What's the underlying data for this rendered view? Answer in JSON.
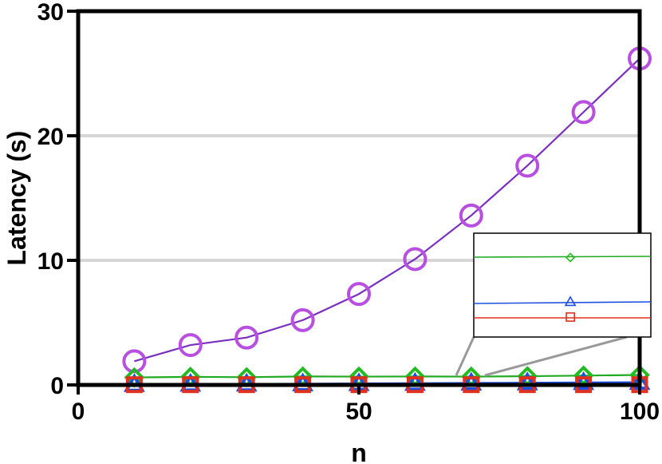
{
  "chart_data": {
    "type": "line",
    "title": "",
    "xlabel": "n",
    "ylabel": "Latency (s)",
    "xlim": [
      0,
      100
    ],
    "ylim": [
      0,
      30
    ],
    "xticks": [
      0,
      50,
      100
    ],
    "yticks": [
      0,
      10,
      20,
      30
    ],
    "grid": "horizontal",
    "legend": "none",
    "x": [
      10,
      20,
      30,
      40,
      50,
      60,
      70,
      80,
      90,
      100
    ],
    "series": [
      {
        "marker": "circle",
        "color": "#7B2FBE",
        "marker_color": "#B84FE0",
        "values": [
          1.9,
          3.2,
          3.8,
          5.2,
          7.3,
          10.1,
          13.6,
          17.6,
          21.9,
          26.2
        ]
      },
      {
        "marker": "diamond",
        "color": "#22AA22",
        "marker_color": "#22BB22",
        "values": [
          0.6,
          0.65,
          0.62,
          0.68,
          0.67,
          0.68,
          0.67,
          0.7,
          0.75,
          0.8
        ]
      },
      {
        "marker": "triangle",
        "color": "#1F4FE0",
        "marker_color": "#1F4FE0",
        "values": [
          0.05,
          0.07,
          0.08,
          0.1,
          0.12,
          0.14,
          0.16,
          0.18,
          0.2,
          0.22
        ]
      },
      {
        "marker": "square",
        "color": "#E0301E",
        "marker_color": "#E0301E",
        "values": [
          0.02,
          0.02,
          0.02,
          0.02,
          0.02,
          0.02,
          0.02,
          0.02,
          0.02,
          0.02
        ]
      }
    ],
    "inset": {
      "x_marker": 85,
      "zoom_range": [
        67,
        100
      ]
    }
  }
}
